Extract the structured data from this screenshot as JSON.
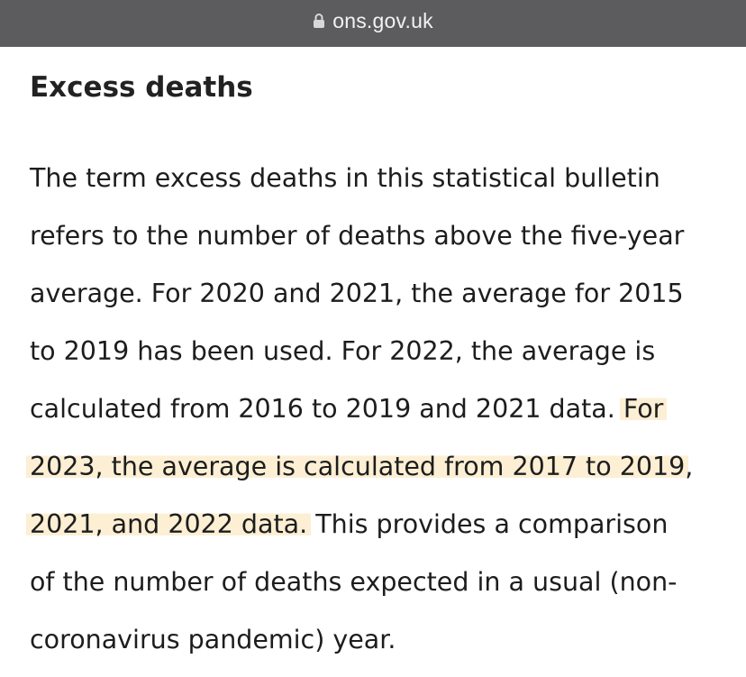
{
  "browser": {
    "url": "ons.gov.uk",
    "lock_icon": "lock-icon"
  },
  "article": {
    "heading": "Excess deaths",
    "lines": [
      "The term excess deaths in this statistical bulletin",
      "refers to the number of deaths above the five-year",
      "average. For 2020 and 2021, the average for 2015",
      "to 2019 has been used. For 2022, the average is",
      "calculated from 2016 to 2019 and 2021 data. ",
      "For",
      "2023, the average is calculated from 2017 to 2019",
      ",",
      "2021, and 2022 data.",
      " This provides a comparison",
      "of the number of deaths expected in a usual (non-",
      "coronavirus pandemic) year."
    ],
    "highlight_color": "#fcefd4"
  }
}
